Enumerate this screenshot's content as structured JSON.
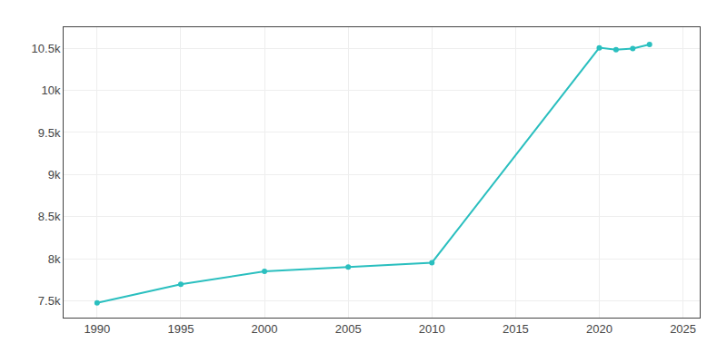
{
  "chart_data": {
    "type": "line",
    "x": [
      1990,
      1995,
      2000,
      2005,
      2010,
      2020,
      2021,
      2022,
      2023
    ],
    "values": [
      7476,
      7697,
      7849,
      7901,
      7953,
      10506,
      10484,
      10496,
      10545
    ],
    "color": "#2abfbf",
    "marker": "circle",
    "xlim": [
      1988,
      2026
    ],
    "ylim": [
      7300,
      10750
    ],
    "xticks": [
      1990,
      1995,
      2000,
      2005,
      2010,
      2015,
      2020,
      2025
    ],
    "yticks": [
      {
        "value": 7500,
        "label": "7.5k"
      },
      {
        "value": 8000,
        "label": "8k"
      },
      {
        "value": 8500,
        "label": "8.5k"
      },
      {
        "value": 9000,
        "label": "9k"
      },
      {
        "value": 9500,
        "label": "9.5k"
      },
      {
        "value": 10000,
        "label": "10k"
      },
      {
        "value": 10500,
        "label": "10.5k"
      }
    ],
    "grid": true
  }
}
